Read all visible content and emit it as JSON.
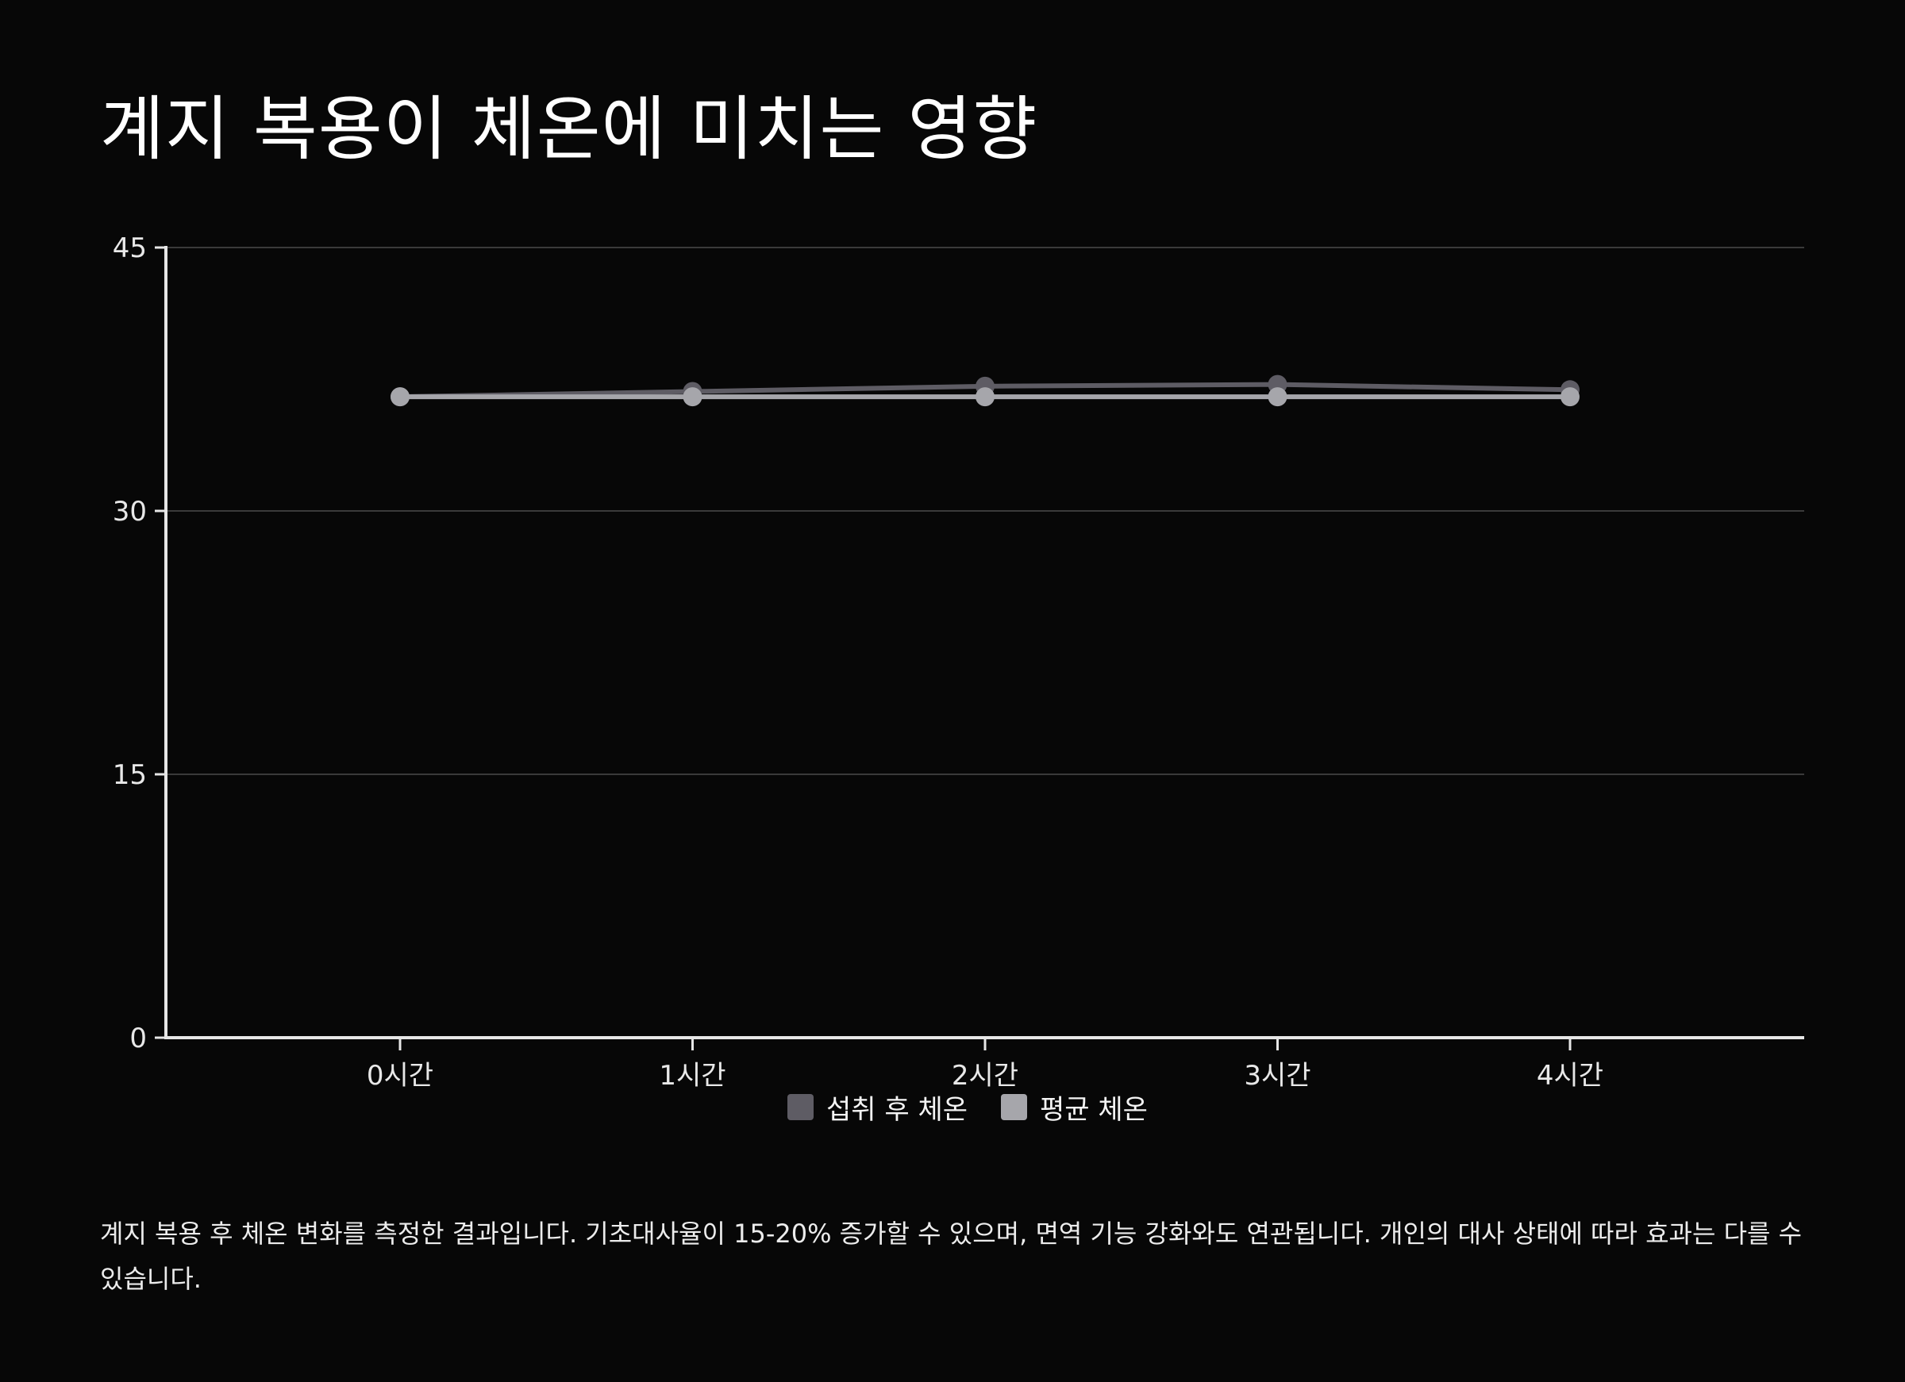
{
  "title": "계지 복용이 체온에 미치는 영향",
  "caption": "계지 복용 후 체온 변화를 측정한 결과입니다. 기초대사율이 15-20% 증가할 수 있으며, 면역 기능 강화와도 연관됩니다. 개인의 대사 상태에 따라 효과는 다를 수 있습니다.",
  "legend": [
    {
      "label": "섭취 후 체온",
      "color": "#5e5c64"
    },
    {
      "label": "평균 체온",
      "color": "#a6a6ab"
    }
  ],
  "chart_data": {
    "type": "line",
    "categories": [
      "0시간",
      "1시간",
      "2시간",
      "3시간",
      "4시간"
    ],
    "series": [
      {
        "name": "섭취 후 체온",
        "values": [
          36.5,
          36.8,
          37.1,
          37.2,
          36.9
        ],
        "color": "#5e5c64"
      },
      {
        "name": "평균 체온",
        "values": [
          36.5,
          36.5,
          36.5,
          36.5,
          36.5
        ],
        "color": "#a6a6ab"
      }
    ],
    "yticks": [
      0,
      15,
      30,
      45
    ],
    "ylim": [
      0,
      45
    ],
    "grid": true,
    "legend_position": "bottom-center",
    "xlabel": "",
    "ylabel": ""
  }
}
